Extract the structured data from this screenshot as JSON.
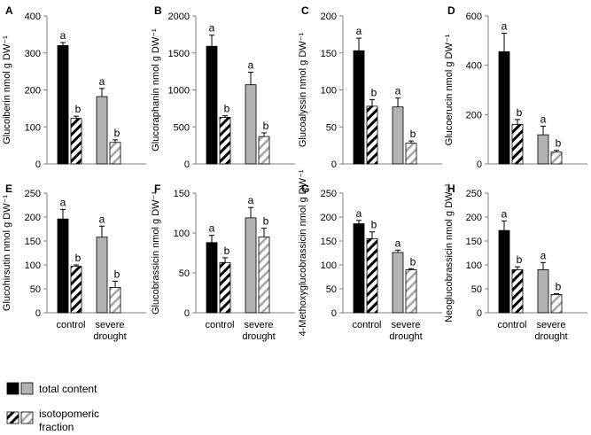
{
  "figure": {
    "x_categories": [
      [
        "control"
      ],
      [
        "severe",
        "drought"
      ]
    ],
    "legend": {
      "total_label": "total content",
      "iso_label_lines": [
        "isotopomeric",
        "fraction"
      ]
    },
    "colors": {
      "control": "#000000",
      "drought": "#b2b2b2",
      "bar_edge": "#000000",
      "iso_control_bg": "#ffffff",
      "iso_drought_bg": "#ffffff",
      "iso_control_stripe": "#000000",
      "iso_drought_stripe": "#a6a6a6",
      "axis": "#7f7f7f",
      "text": "#000000"
    }
  },
  "chart_data": [
    {
      "panel": "A",
      "type": "bar",
      "ylabel": "Glucoiberin",
      "unit": "nmol g DW⁻¹",
      "ylim": [
        0,
        400
      ],
      "yticks": [
        0,
        100,
        200,
        300,
        400
      ],
      "series": [
        {
          "name": "total content",
          "values": [
            320,
            182
          ],
          "errors": [
            8,
            22
          ]
        },
        {
          "name": "isotopomeric fraction",
          "values": [
            123,
            58
          ],
          "errors": [
            6,
            7
          ]
        }
      ],
      "labels": [
        [
          "a",
          "b"
        ],
        [
          "a",
          "b"
        ]
      ]
    },
    {
      "panel": "B",
      "type": "bar",
      "ylabel": "Glucoraphanin",
      "unit": "nmol g DW⁻¹",
      "ylim": [
        0,
        2000
      ],
      "yticks": [
        0,
        500,
        1000,
        1500,
        2000
      ],
      "series": [
        {
          "name": "total content",
          "values": [
            1590,
            1070
          ],
          "errors": [
            150,
            170
          ]
        },
        {
          "name": "isotopomeric fraction",
          "values": [
            630,
            370
          ],
          "errors": [
            20,
            50
          ]
        }
      ],
      "labels": [
        [
          "a",
          "b"
        ],
        [
          "a",
          "b"
        ]
      ]
    },
    {
      "panel": "C",
      "type": "bar",
      "ylabel": "Glucoalyssin",
      "unit": "nmol g DW⁻¹",
      "ylim": [
        0,
        200
      ],
      "yticks": [
        0,
        50,
        100,
        150,
        200
      ],
      "series": [
        {
          "name": "total content",
          "values": [
            153,
            77
          ],
          "errors": [
            17,
            12
          ]
        },
        {
          "name": "isotopomeric fraction",
          "values": [
            78,
            28
          ],
          "errors": [
            9,
            3
          ]
        }
      ],
      "labels": [
        [
          "a",
          "b"
        ],
        [
          "a",
          "b"
        ]
      ]
    },
    {
      "panel": "D",
      "type": "bar",
      "ylabel": "Glucoerucin",
      "unit": "nmol g DW⁻¹",
      "ylim": [
        0,
        600
      ],
      "yticks": [
        0,
        200,
        400,
        600
      ],
      "series": [
        {
          "name": "total content",
          "values": [
            455,
            118
          ],
          "errors": [
            75,
            35
          ]
        },
        {
          "name": "isotopomeric fraction",
          "values": [
            160,
            48
          ],
          "errors": [
            20,
            7
          ]
        }
      ],
      "labels": [
        [
          "a",
          "b"
        ],
        [
          "a",
          "b"
        ]
      ]
    },
    {
      "panel": "E",
      "type": "bar",
      "ylabel": "Glucohirsutin",
      "unit": "nmol g DW⁻¹",
      "ylim": [
        0,
        250
      ],
      "yticks": [
        0,
        50,
        100,
        150,
        200,
        250
      ],
      "series": [
        {
          "name": "total content",
          "values": [
            196,
            158
          ],
          "errors": [
            20,
            23
          ]
        },
        {
          "name": "isotopomeric fraction",
          "values": [
            97,
            53
          ],
          "errors": [
            3,
            13
          ]
        }
      ],
      "labels": [
        [
          "a",
          "b"
        ],
        [
          "a",
          "b"
        ]
      ]
    },
    {
      "panel": "F",
      "type": "bar",
      "ylabel": "Glucobrassicin",
      "unit": "nmol g DW⁻¹",
      "ylim": [
        0,
        150
      ],
      "yticks": [
        0,
        50,
        100,
        150
      ],
      "series": [
        {
          "name": "total content",
          "values": [
            88,
            119
          ],
          "errors": [
            9,
            13
          ]
        },
        {
          "name": "isotopomeric fraction",
          "values": [
            63,
            95
          ],
          "errors": [
            6,
            11
          ]
        }
      ],
      "labels": [
        [
          "a",
          "b"
        ],
        [
          "a",
          "b"
        ]
      ]
    },
    {
      "panel": "G",
      "type": "bar",
      "ylabel": "4-Methoxyglucobrassicin",
      "unit": "nmol g DW⁻¹",
      "ylim": [
        0,
        250
      ],
      "yticks": [
        0,
        50,
        100,
        150,
        200,
        250
      ],
      "series": [
        {
          "name": "total content",
          "values": [
            186,
            126
          ],
          "errors": [
            7,
            5
          ]
        },
        {
          "name": "isotopomeric fraction",
          "values": [
            155,
            90
          ],
          "errors": [
            14,
            2
          ]
        }
      ],
      "labels": [
        [
          "a",
          "b"
        ],
        [
          "a",
          "b"
        ]
      ]
    },
    {
      "panel": "H",
      "type": "bar",
      "ylabel": "Neoglucobrassicin",
      "unit": "nmol g DW⁻¹",
      "ylim": [
        0,
        250
      ],
      "yticks": [
        0,
        50,
        100,
        150,
        200,
        250
      ],
      "series": [
        {
          "name": "total content",
          "values": [
            172,
            90
          ],
          "errors": [
            20,
            15
          ]
        },
        {
          "name": "isotopomeric fraction",
          "values": [
            90,
            38
          ],
          "errors": [
            6,
            2
          ]
        }
      ],
      "labels": [
        [
          "a",
          "b"
        ],
        [
          "a",
          "b"
        ]
      ]
    }
  ]
}
